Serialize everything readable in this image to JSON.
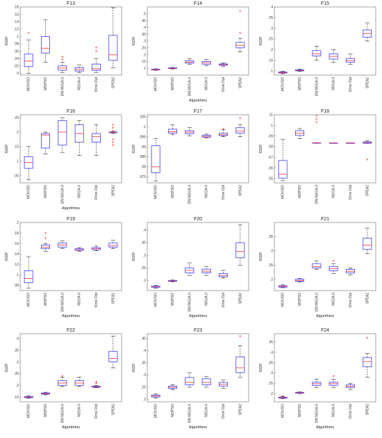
{
  "chart_data": [
    {
      "type": "box",
      "title": "F13",
      "xlabel": "",
      "ylabel": "IGDF",
      "ylim": [
        -0.005,
        0.18
      ],
      "yticks": [
        0,
        0.02,
        0.04,
        0.06,
        0.08,
        0.1,
        0.12,
        0.14,
        0.16,
        0.18
      ],
      "categories": [
        "MOVISO",
        "MOPSO",
        "DN NSGA-II",
        "NSGA-II",
        "Omni Opt",
        "SPEA2"
      ],
      "boxes": [
        {
          "min": 0,
          "q1": 0.018,
          "median": 0.033,
          "q3": 0.052,
          "max": 0.09,
          "outliers": [
            0.11
          ]
        },
        {
          "min": 0.03,
          "q1": 0.055,
          "median": 0.068,
          "q3": 0.1,
          "max": 0.145,
          "outliers": []
        },
        {
          "min": 0.002,
          "q1": 0.008,
          "median": 0.014,
          "q3": 0.02,
          "max": 0.03,
          "outliers": [
            0.038,
            0.045
          ]
        },
        {
          "min": 0.002,
          "q1": 0.006,
          "median": 0.01,
          "q3": 0.015,
          "max": 0.022,
          "outliers": []
        },
        {
          "min": 0.002,
          "q1": 0.008,
          "median": 0.012,
          "q3": 0.025,
          "max": 0.04,
          "outliers": [
            0.06,
            0.07
          ]
        },
        {
          "min": 0.015,
          "q1": 0.035,
          "median": 0.05,
          "q3": 0.103,
          "max": 0.178,
          "outliers": []
        }
      ]
    },
    {
      "type": "box",
      "title": "F14",
      "xlabel": "Algorithms",
      "ylabel": "IGDF",
      "ylim": [
        0.05,
        0.55
      ],
      "yticks": [
        0.1,
        0.15,
        0.2,
        0.25,
        0.3,
        0.35,
        0.4,
        0.45,
        0.5
      ],
      "categories": [
        "MOVISO",
        "MOPSO",
        "DN NSGA-II",
        "NSGA-II",
        "Omni Opt",
        "SPEA2"
      ],
      "boxes": [
        {
          "min": 0.085,
          "q1": 0.088,
          "median": 0.09,
          "q3": 0.093,
          "max": 0.096,
          "outliers": []
        },
        {
          "min": 0.095,
          "q1": 0.098,
          "median": 0.1,
          "q3": 0.103,
          "max": 0.106,
          "outliers": []
        },
        {
          "min": 0.13,
          "q1": 0.138,
          "median": 0.146,
          "q3": 0.156,
          "max": 0.17,
          "outliers": []
        },
        {
          "min": 0.12,
          "q1": 0.13,
          "median": 0.14,
          "q3": 0.15,
          "max": 0.165,
          "outliers": []
        },
        {
          "min": 0.115,
          "q1": 0.122,
          "median": 0.127,
          "q3": 0.132,
          "max": 0.14,
          "outliers": []
        },
        {
          "min": 0.22,
          "q1": 0.25,
          "median": 0.268,
          "q3": 0.29,
          "max": 0.32,
          "outliers": [
            0.36,
            0.52
          ]
        }
      ]
    },
    {
      "type": "box",
      "title": "F15",
      "xlabel": "",
      "ylabel": "IGDF",
      "ylim": [
        0.08,
        0.4
      ],
      "yticks": [
        0.1,
        0.15,
        0.2,
        0.25,
        0.3,
        0.35,
        0.4
      ],
      "categories": [
        "MOVISO",
        "MOPSO",
        "DN NSGA-II",
        "NSGA-II",
        "Omni Opt",
        "SPEA2"
      ],
      "boxes": [
        {
          "min": 0.087,
          "q1": 0.09,
          "median": 0.092,
          "q3": 0.095,
          "max": 0.098,
          "outliers": []
        },
        {
          "min": 0.097,
          "q1": 0.1,
          "median": 0.102,
          "q3": 0.105,
          "max": 0.108,
          "outliers": []
        },
        {
          "min": 0.15,
          "q1": 0.17,
          "median": 0.18,
          "q3": 0.195,
          "max": 0.215,
          "outliers": []
        },
        {
          "min": 0.14,
          "q1": 0.155,
          "median": 0.168,
          "q3": 0.18,
          "max": 0.2,
          "outliers": []
        },
        {
          "min": 0.13,
          "q1": 0.14,
          "median": 0.148,
          "q3": 0.158,
          "max": 0.18,
          "outliers": []
        },
        {
          "min": 0.24,
          "q1": 0.258,
          "median": 0.275,
          "q3": 0.292,
          "max": 0.325,
          "outliers": []
        }
      ]
    },
    {
      "type": "box",
      "title": "F16",
      "xlabel": "Algorithms",
      "ylabel": "IGDF",
      "ylim": [
        0.025,
        0.26
      ],
      "yticks": [
        0.05,
        0.1,
        0.15,
        0.2,
        0.25
      ],
      "categories": [
        "MOVISO",
        "MOPSO",
        "DN NSGA-II",
        "NSGA-II",
        "Omni Opt",
        "SPEA2"
      ],
      "boxes": [
        {
          "min": 0.035,
          "q1": 0.075,
          "median": 0.095,
          "q3": 0.115,
          "max": 0.15,
          "outliers": []
        },
        {
          "min": 0.125,
          "q1": 0.145,
          "median": 0.19,
          "q3": 0.195,
          "max": 0.2,
          "outliers": []
        },
        {
          "min": 0.13,
          "q1": 0.155,
          "median": 0.2,
          "q3": 0.24,
          "max": 0.25,
          "outliers": []
        },
        {
          "min": 0.12,
          "q1": 0.165,
          "median": 0.195,
          "q3": 0.225,
          "max": 0.24,
          "outliers": []
        },
        {
          "min": 0.12,
          "q1": 0.165,
          "median": 0.185,
          "q3": 0.195,
          "max": 0.225,
          "outliers": []
        },
        {
          "min": 0.195,
          "q1": 0.198,
          "median": 0.199,
          "q3": 0.2,
          "max": 0.202,
          "outliers": [
            0.155,
            0.165,
            0.175,
            0.205,
            0.215,
            0.225
          ]
        }
      ]
    },
    {
      "type": "box",
      "title": "F17",
      "xlabel": "",
      "ylabel": "IGDF",
      "ylim": [
        0.072,
        0.106
      ],
      "yticks": [
        0.075,
        0.08,
        0.085,
        0.09,
        0.095,
        0.1,
        0.105
      ],
      "categories": [
        "MOVISO",
        "MOPSO",
        "DN NSGA-II",
        "NSGA-II",
        "Omni Opt",
        "SPEA2"
      ],
      "boxes": [
        {
          "min": 0.073,
          "q1": 0.077,
          "median": 0.08,
          "q3": 0.0905,
          "max": 0.094,
          "outliers": []
        },
        {
          "min": 0.096,
          "q1": 0.0968,
          "median": 0.0975,
          "q3": 0.0988,
          "max": 0.101,
          "outliers": []
        },
        {
          "min": 0.0955,
          "q1": 0.0965,
          "median": 0.0973,
          "q3": 0.098,
          "max": 0.0995,
          "outliers": []
        },
        {
          "min": 0.0945,
          "q1": 0.0948,
          "median": 0.0952,
          "q3": 0.0958,
          "max": 0.0963,
          "outliers": []
        },
        {
          "min": 0.095,
          "q1": 0.0956,
          "median": 0.096,
          "q3": 0.0968,
          "max": 0.0985,
          "outliers": [
            0.099
          ]
        },
        {
          "min": 0.095,
          "q1": 0.0968,
          "median": 0.0978,
          "q3": 0.0995,
          "max": 0.101,
          "outliers": [
            0.1045
          ]
        }
      ]
    },
    {
      "type": "box",
      "title": "F18",
      "xlabel": "",
      "ylabel": "IGDF",
      "ylim": [
        0.046,
        0.11
      ],
      "yticks": [
        0.05,
        0.06,
        0.07,
        0.08,
        0.09,
        0.1,
        0.11
      ],
      "categories": [
        "MOVISO",
        "MOPSO",
        "DN NSGA-II",
        "NSGA-II",
        "Omni Opt",
        "SPEA2"
      ],
      "boxes": [
        {
          "min": 0.048,
          "q1": 0.0505,
          "median": 0.054,
          "q3": 0.067,
          "max": 0.087,
          "outliers": []
        },
        {
          "min": 0.0875,
          "q1": 0.0905,
          "median": 0.0925,
          "q3": 0.095,
          "max": 0.097,
          "outliers": []
        },
        {
          "min": 0.0832,
          "q1": 0.0834,
          "median": 0.0835,
          "q3": 0.0836,
          "max": 0.0838,
          "outliers": [
            0.103,
            0.106,
            0.109
          ]
        },
        {
          "min": 0.0832,
          "q1": 0.0834,
          "median": 0.0835,
          "q3": 0.0835,
          "max": 0.0837,
          "outliers": []
        },
        {
          "min": 0.0832,
          "q1": 0.0834,
          "median": 0.0835,
          "q3": 0.0835,
          "max": 0.0837,
          "outliers": []
        },
        {
          "min": 0.083,
          "q1": 0.0832,
          "median": 0.0838,
          "q3": 0.0845,
          "max": 0.0855,
          "outliers": [
            0.068
          ]
        }
      ]
    },
    {
      "type": "box",
      "title": "F19",
      "xlabel": "Algorithms",
      "ylabel": "IGDF",
      "ylim": [
        0.07,
        0.2
      ],
      "yticks": [
        0.08,
        0.1,
        0.12,
        0.14,
        0.16,
        0.18,
        0.2
      ],
      "categories": [
        "MOVISO",
        "MOPSO",
        "DN NSGA-II",
        "NSGA-II",
        "Omni Opt",
        "SPEA2"
      ],
      "boxes": [
        {
          "min": 0.075,
          "q1": 0.085,
          "median": 0.093,
          "q3": 0.108,
          "max": 0.135,
          "outliers": []
        },
        {
          "min": 0.145,
          "q1": 0.15,
          "median": 0.153,
          "q3": 0.157,
          "max": 0.16,
          "outliers": [
            0.17,
            0.18
          ]
        },
        {
          "min": 0.15,
          "q1": 0.153,
          "median": 0.157,
          "q3": 0.161,
          "max": 0.165,
          "outliers": []
        },
        {
          "min": 0.145,
          "q1": 0.147,
          "median": 0.148,
          "q3": 0.15,
          "max": 0.152,
          "outliers": []
        },
        {
          "min": 0.146,
          "q1": 0.148,
          "median": 0.15,
          "q3": 0.152,
          "max": 0.155,
          "outliers": []
        },
        {
          "min": 0.15,
          "q1": 0.153,
          "median": 0.156,
          "q3": 0.161,
          "max": 0.166,
          "outliers": []
        }
      ]
    },
    {
      "type": "box",
      "title": "F20",
      "xlabel": "Algorithms",
      "ylabel": "IGDF",
      "ylim": [
        0.16,
        0.43
      ],
      "yticks": [
        0.2,
        0.25,
        0.3,
        0.35,
        0.4
      ],
      "categories": [
        "MOVISO",
        "MOPSO",
        "DN NSGA-II",
        "NSGA-II",
        "Omni Opt",
        "SPEA2"
      ],
      "boxes": [
        {
          "min": 0.17,
          "q1": 0.173,
          "median": 0.176,
          "q3": 0.178,
          "max": 0.181,
          "outliers": []
        },
        {
          "min": 0.195,
          "q1": 0.197,
          "median": 0.198,
          "q3": 0.2,
          "max": 0.202,
          "outliers": []
        },
        {
          "min": 0.22,
          "q1": 0.23,
          "median": 0.24,
          "q3": 0.25,
          "max": 0.27,
          "outliers": []
        },
        {
          "min": 0.22,
          "q1": 0.23,
          "median": 0.237,
          "q3": 0.245,
          "max": 0.255,
          "outliers": []
        },
        {
          "min": 0.21,
          "q1": 0.215,
          "median": 0.22,
          "q3": 0.228,
          "max": 0.24,
          "outliers": []
        },
        {
          "min": 0.26,
          "q1": 0.29,
          "median": 0.315,
          "q3": 0.35,
          "max": 0.42,
          "outliers": []
        }
      ]
    },
    {
      "type": "box",
      "title": "F21",
      "xlabel": "Algorithms",
      "ylabel": "IGDF",
      "ylim": [
        0.16,
        0.4
      ],
      "yticks": [
        0.2,
        0.25,
        0.3,
        0.35
      ],
      "categories": [
        "MOVISO",
        "MOPSO",
        "DN NSGA-II",
        "NSGA-II",
        "Omni Opt",
        "SPEA2"
      ],
      "boxes": [
        {
          "min": 0.17,
          "q1": 0.172,
          "median": 0.175,
          "q3": 0.177,
          "max": 0.18,
          "outliers": []
        },
        {
          "min": 0.19,
          "q1": 0.193,
          "median": 0.196,
          "q3": 0.2,
          "max": 0.203,
          "outliers": []
        },
        {
          "min": 0.235,
          "q1": 0.24,
          "median": 0.245,
          "q3": 0.255,
          "max": 0.265,
          "outliers": []
        },
        {
          "min": 0.22,
          "q1": 0.23,
          "median": 0.237,
          "q3": 0.245,
          "max": 0.255,
          "outliers": [
            0.265
          ]
        },
        {
          "min": 0.215,
          "q1": 0.222,
          "median": 0.228,
          "q3": 0.235,
          "max": 0.24,
          "outliers": []
        },
        {
          "min": 0.29,
          "q1": 0.305,
          "median": 0.32,
          "q3": 0.345,
          "max": 0.38,
          "outliers": []
        }
      ]
    },
    {
      "type": "box",
      "title": "F22",
      "xlabel": "Algorithms",
      "ylabel": "IGDF",
      "ylim": [
        0.13,
        0.42
      ],
      "yticks": [
        0.15,
        0.2,
        0.25,
        0.3,
        0.35,
        0.4
      ],
      "categories": [
        "MOVISO",
        "MOPSO",
        "DN NSGA-II",
        "NSGA-II",
        "Omni Opt",
        "SPEA2"
      ],
      "boxes": [
        {
          "min": 0.145,
          "q1": 0.148,
          "median": 0.15,
          "q3": 0.153,
          "max": 0.156,
          "outliers": []
        },
        {
          "min": 0.16,
          "q1": 0.163,
          "median": 0.165,
          "q3": 0.168,
          "max": 0.171,
          "outliers": []
        },
        {
          "min": 0.195,
          "q1": 0.2,
          "median": 0.21,
          "q3": 0.22,
          "max": 0.235,
          "outliers": [
            0.24
          ]
        },
        {
          "min": 0.195,
          "q1": 0.2,
          "median": 0.21,
          "q3": 0.22,
          "max": 0.235,
          "outliers": []
        },
        {
          "min": 0.19,
          "q1": 0.192,
          "median": 0.195,
          "q3": 0.197,
          "max": 0.2,
          "outliers": [
            0.21,
            0.215
          ]
        },
        {
          "min": 0.275,
          "q1": 0.3,
          "median": 0.315,
          "q3": 0.345,
          "max": 0.41,
          "outliers": []
        }
      ]
    },
    {
      "type": "box",
      "title": "F23",
      "xlabel": "Algorithms",
      "ylabel": "IGDF",
      "ylim": [
        0.19,
        0.47
      ],
      "yticks": [
        0.2,
        0.25,
        0.3,
        0.35,
        0.4,
        0.45
      ],
      "categories": [
        "MOVISO",
        "MOPSO",
        "DN NSGA-II",
        "NSGA-II",
        "Omni Opt",
        "SPEA2"
      ],
      "boxes": [
        {
          "min": 0.205,
          "q1": 0.21,
          "median": 0.214,
          "q3": 0.218,
          "max": 0.222,
          "outliers": []
        },
        {
          "min": 0.24,
          "q1": 0.245,
          "median": 0.25,
          "q3": 0.255,
          "max": 0.26,
          "outliers": []
        },
        {
          "min": 0.25,
          "q1": 0.26,
          "median": 0.27,
          "q3": 0.29,
          "max": 0.31,
          "outliers": []
        },
        {
          "min": 0.25,
          "q1": 0.26,
          "median": 0.27,
          "q3": 0.285,
          "max": 0.295,
          "outliers": []
        },
        {
          "min": 0.245,
          "q1": 0.255,
          "median": 0.262,
          "q3": 0.27,
          "max": 0.28,
          "outliers": []
        },
        {
          "min": 0.29,
          "q1": 0.31,
          "median": 0.33,
          "q3": 0.375,
          "max": 0.42,
          "outliers": [
            0.46
          ]
        }
      ]
    },
    {
      "type": "box",
      "title": "F24",
      "xlabel": "Algorithms",
      "ylabel": "IGDF",
      "ylim": [
        0.16,
        0.49
      ],
      "yticks": [
        0.2,
        0.25,
        0.3,
        0.35,
        0.4,
        0.45
      ],
      "categories": [
        "MOVISO",
        "MOPSO",
        "DN NSGA-II",
        "NSGA-II",
        "Omni Opt",
        "SPEA2"
      ],
      "boxes": [
        {
          "min": 0.175,
          "q1": 0.178,
          "median": 0.18,
          "q3": 0.183,
          "max": 0.186,
          "outliers": [
            0.19
          ]
        },
        {
          "min": 0.2,
          "q1": 0.202,
          "median": 0.204,
          "q3": 0.206,
          "max": 0.208,
          "outliers": []
        },
        {
          "min": 0.23,
          "q1": 0.24,
          "median": 0.248,
          "q3": 0.255,
          "max": 0.27,
          "outliers": []
        },
        {
          "min": 0.23,
          "q1": 0.24,
          "median": 0.248,
          "q3": 0.255,
          "max": 0.27,
          "outliers": [
            0.285
          ]
        },
        {
          "min": 0.22,
          "q1": 0.23,
          "median": 0.235,
          "q3": 0.242,
          "max": 0.25,
          "outliers": []
        },
        {
          "min": 0.28,
          "q1": 0.33,
          "median": 0.355,
          "q3": 0.375,
          "max": 0.395,
          "outliers": [
            0.47
          ]
        }
      ]
    }
  ]
}
